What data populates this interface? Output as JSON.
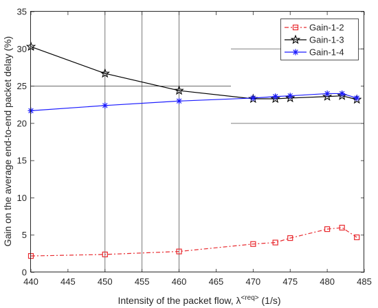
{
  "chart_data": {
    "type": "line",
    "title": "",
    "xlabel": "Intensity of the packet flow, λ",
    "xlabel_sup": "<req>",
    "xlabel_unit": "(1/s)",
    "ylabel": "Gain on the average end-to-end packet delay (%)",
    "xlim": [
      440,
      485
    ],
    "ylim": [
      0,
      35
    ],
    "xticks": [
      440,
      445,
      450,
      455,
      460,
      465,
      470,
      475,
      480,
      485
    ],
    "yticks": [
      0,
      5,
      10,
      15,
      20,
      25,
      30,
      35
    ],
    "grid": false,
    "legend_position": "top-right",
    "series": [
      {
        "name": "Gain-1-2",
        "color": "#e8292e",
        "line_style": "dash-dot",
        "marker": "square",
        "x": [
          440,
          450,
          460,
          470,
          473,
          475,
          480,
          482,
          484
        ],
        "y": [
          2.2,
          2.4,
          2.8,
          3.8,
          4.0,
          4.6,
          5.8,
          6.0,
          4.7
        ]
      },
      {
        "name": "Gain-1-3",
        "color": "#000000",
        "line_style": "solid",
        "marker": "star",
        "x": [
          440,
          450,
          460,
          470,
          473,
          475,
          480,
          482,
          484
        ],
        "y": [
          30.3,
          26.7,
          24.4,
          23.3,
          23.3,
          23.4,
          23.6,
          23.7,
          23.2
        ]
      },
      {
        "name": "Gain-1-4",
        "color": "#1a1aff",
        "line_style": "solid",
        "marker": "asterisk",
        "x": [
          440,
          450,
          460,
          470,
          473,
          475,
          480,
          482,
          484
        ],
        "y": [
          21.7,
          22.4,
          23.0,
          23.4,
          23.6,
          23.7,
          24.0,
          24.0,
          23.4
        ]
      }
    ]
  }
}
